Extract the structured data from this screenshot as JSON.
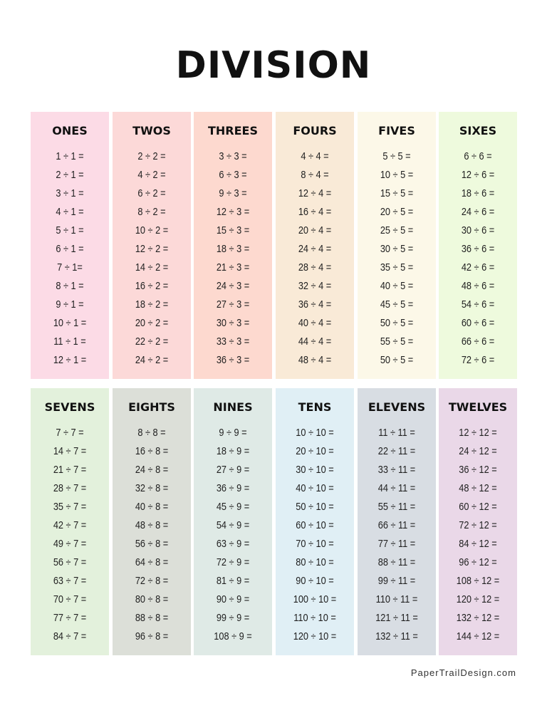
{
  "title": "DIVISION",
  "footer": "PaperTrailDesign.com",
  "columns": [
    {
      "label": "ONES",
      "color": "#fcdbe6",
      "items": [
        "1 ÷ 1 =",
        "2 ÷ 1 =",
        "3 ÷ 1 =",
        "4 ÷ 1 =",
        "5 ÷ 1 =",
        "6 ÷ 1 =",
        "7 ÷ 1=",
        "8 ÷ 1 =",
        "9 ÷ 1 =",
        "10 ÷ 1 =",
        "11 ÷ 1 =",
        "12 ÷ 1 ="
      ]
    },
    {
      "label": "TWOS",
      "color": "#fcd9d8",
      "items": [
        "2 ÷ 2 =",
        "4 ÷ 2 =",
        "6 ÷ 2 =",
        "8 ÷ 2 =",
        "10 ÷ 2 =",
        "12 ÷ 2 =",
        "14 ÷ 2 =",
        "16 ÷ 2 =",
        "18 ÷ 2 =",
        "20 ÷ 2 =",
        "22 ÷ 2 =",
        "24 ÷ 2 ="
      ]
    },
    {
      "label": "THREES",
      "color": "#fdd9cf",
      "items": [
        "3 ÷ 3 =",
        "6 ÷ 3 =",
        "9 ÷ 3 =",
        "12 ÷ 3 =",
        "15 ÷ 3 =",
        "18 ÷ 3 =",
        "21 ÷ 3 =",
        "24 ÷  3 =",
        "27 ÷ 3 =",
        "30 ÷ 3 =",
        "33 ÷ 3 =",
        "36 ÷ 3 ="
      ]
    },
    {
      "label": "FOURS",
      "color": "#f9ead7",
      "items": [
        "4 ÷ 4 =",
        "8 ÷ 4 =",
        "12 ÷ 4 =",
        "16 ÷ 4 =",
        "20 ÷ 4 =",
        "24 ÷ 4 =",
        "28 ÷ 4 =",
        "32 ÷ 4 =",
        "36 ÷ 4 =",
        "40 ÷ 4 =",
        "44 ÷ 4 =",
        "48 ÷ 4 ="
      ]
    },
    {
      "label": "FIVES",
      "color": "#fcf8e8",
      "items": [
        "5 ÷ 5 =",
        "10 ÷ 5 =",
        "15 ÷ 5 =",
        "20 ÷ 5 =",
        "25 ÷ 5 =",
        "30 ÷ 5 =",
        "35 ÷ 5 =",
        "40 ÷ 5 =",
        "45 ÷ 5 =",
        "50 ÷ 5 =",
        "55 ÷ 5 =",
        "50 ÷ 5 ="
      ]
    },
    {
      "label": "SIXES",
      "color": "#eefadd",
      "items": [
        "6 ÷ 6 =",
        "12 ÷ 6 =",
        "18 ÷ 6 =",
        "24 ÷ 6 =",
        "30 ÷ 6 =",
        "36 ÷ 6 =",
        "42 ÷ 6 =",
        "48 ÷ 6 =",
        "54 ÷ 6 =",
        "60 ÷ 6 =",
        "66 ÷ 6 =",
        "72 ÷ 6 ="
      ]
    },
    {
      "label": "SEVENS",
      "color": "#e3f1dc",
      "items": [
        "7 ÷ 7 =",
        "14 ÷ 7 =",
        "21 ÷ 7 =",
        "28 ÷ 7 =",
        "35 ÷ 7 =",
        "42 ÷ 7 =",
        "49 ÷ 7 =",
        "56 ÷ 7 =",
        "63 ÷ 7 =",
        "70 ÷ 7 =",
        "77 ÷ 7 =",
        "84 ÷ 7 ="
      ]
    },
    {
      "label": "EIGHTS",
      "color": "#dcdfd8",
      "items": [
        "8 ÷ 8 =",
        "16 ÷ 8 =",
        "24 ÷ 8 =",
        "32 ÷ 8 =",
        "40 ÷ 8 =",
        "48 ÷ 8 =",
        "56 ÷ 8 =",
        "64 ÷ 8 =",
        "72 ÷ 8 =",
        "80 ÷ 8 =",
        "88 ÷ 8 =",
        "96 ÷ 8 ="
      ]
    },
    {
      "label": "NINES",
      "color": "#dfeae6",
      "items": [
        "9 ÷ 9 =",
        "18 ÷ 9 =",
        "27 ÷ 9 =",
        "36 ÷ 9 =",
        "45 ÷ 9 =",
        "54 ÷ 9 =",
        "63 ÷ 9 =",
        "72 ÷ 9 =",
        "81 ÷ 9 =",
        "90 ÷ 9 =",
        "99 ÷ 9 =",
        "108 ÷ 9 ="
      ]
    },
    {
      "label": "TENS",
      "color": "#e0eff5",
      "items": [
        "10 ÷ 10 =",
        "20 ÷ 10 =",
        "30 ÷ 10 =",
        "40 ÷ 10 =",
        "50 ÷ 10 =",
        "60 ÷ 10 =",
        "70 ÷ 10 =",
        "80 ÷ 10 =",
        "90 ÷ 10 =",
        "100 ÷ 10 =",
        "110 ÷ 10 =",
        "120 ÷ 10 ="
      ]
    },
    {
      "label": "ELEVENS",
      "color": "#d8dde3",
      "items": [
        "11 ÷ 11 =",
        "22 ÷ 11 =",
        "33 ÷ 11 =",
        "44 ÷ 11 =",
        "55 ÷ 11 =",
        "66 ÷ 11 =",
        "77 ÷ 11 =",
        "88 ÷ 11 =",
        "99 ÷ 11 =",
        "110 ÷ 11 =",
        "121 ÷ 11 =",
        "132 ÷ 11 ="
      ]
    },
    {
      "label": "TWELVES",
      "color": "#ead8e8",
      "items": [
        "12 ÷ 12 =",
        "24 ÷ 12 =",
        "36 ÷ 12 =",
        "48 ÷ 12 =",
        "60 ÷ 12 =",
        "72 ÷ 12 =",
        "84 ÷ 12 =",
        "96 ÷ 12 =",
        "108 ÷ 12 =",
        "120 ÷ 12 =",
        "132 ÷ 12 =",
        "144 ÷ 12 ="
      ]
    }
  ]
}
